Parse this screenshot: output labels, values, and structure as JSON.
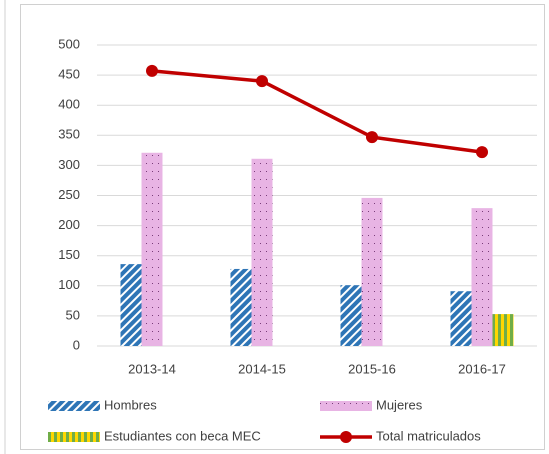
{
  "chart_data": {
    "type": "bar",
    "categories": [
      "2013-14",
      "2014-15",
      "2015-16",
      "2016-17"
    ],
    "series": [
      {
        "name": "Hombres",
        "color": "#2e75b6",
        "values": [
          136,
          128,
          101,
          91
        ]
      },
      {
        "name": "Mujeres",
        "color": "#e8b4e4",
        "values": [
          321,
          311,
          246,
          229
        ]
      },
      {
        "name": "Estudiantes con beca MEC",
        "color": "#70ad47",
        "values": [
          null,
          null,
          null,
          53
        ]
      },
      {
        "name": "Total matriculados",
        "color": "#c00000",
        "type": "line",
        "values": [
          457,
          440,
          347,
          322
        ]
      }
    ],
    "ylim": [
      0,
      500
    ],
    "yticks": [
      0,
      50,
      100,
      150,
      200,
      250,
      300,
      350,
      400,
      450,
      500
    ],
    "grid": true,
    "legend": "bottom"
  }
}
